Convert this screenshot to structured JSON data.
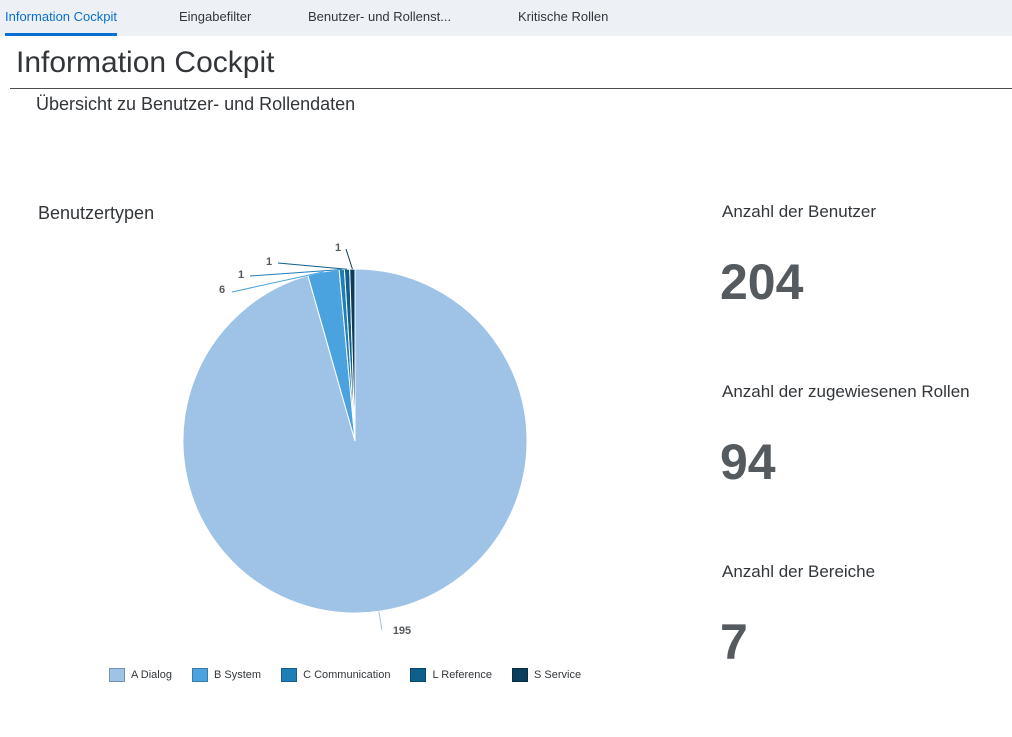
{
  "tabs": [
    {
      "label": "Information Cockpit",
      "active": true
    },
    {
      "label": "Eingabefilter",
      "active": false
    },
    {
      "label": "Benutzer- und Rollenst",
      "overflow": "...",
      "active": false
    },
    {
      "label": "Kritische Rollen",
      "active": false
    }
  ],
  "page": {
    "title": "Information Cockpit",
    "subtitle": "Übersicht zu Benutzer- und Rollendaten"
  },
  "chart_title": "Benutzertypen",
  "chart_data": {
    "type": "pie",
    "title": "Benutzertypen",
    "categories": [
      "A Dialog",
      "B System",
      "C Communication",
      "L Reference",
      "S Service"
    ],
    "values": [
      195,
      6,
      1,
      1,
      1
    ],
    "colors": [
      "#9fc3e6",
      "#4aa3de",
      "#1e7fb6",
      "#0e5f8c",
      "#0b3d5c"
    ],
    "legend": "bottom",
    "data_labels": [
      "195",
      "6",
      "1",
      "1",
      "1"
    ]
  },
  "kpis": [
    {
      "label": "Anzahl der Benutzer",
      "value": "204"
    },
    {
      "label": "Anzahl der zugewiesenen Rollen",
      "value": "94"
    },
    {
      "label": "Anzahl der Bereiche",
      "value": "7"
    }
  ]
}
